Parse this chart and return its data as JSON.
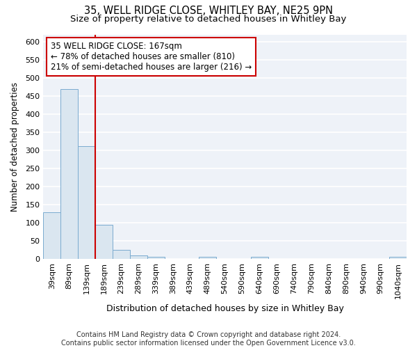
{
  "title1": "35, WELL RIDGE CLOSE, WHITLEY BAY, NE25 9PN",
  "title2": "Size of property relative to detached houses in Whitley Bay",
  "xlabel": "Distribution of detached houses by size in Whitley Bay",
  "ylabel": "Number of detached properties",
  "categories": [
    "39sqm",
    "89sqm",
    "139sqm",
    "189sqm",
    "239sqm",
    "289sqm",
    "339sqm",
    "389sqm",
    "439sqm",
    "489sqm",
    "540sqm",
    "590sqm",
    "640sqm",
    "690sqm",
    "740sqm",
    "790sqm",
    "840sqm",
    "890sqm",
    "940sqm",
    "990sqm",
    "1040sqm"
  ],
  "values": [
    128,
    470,
    311,
    95,
    25,
    10,
    5,
    0,
    0,
    5,
    0,
    0,
    5,
    0,
    0,
    0,
    0,
    0,
    0,
    0,
    5
  ],
  "bar_color": "#dae6f0",
  "bar_edge_color": "#7aabcf",
  "red_line_color": "#cc0000",
  "annotation_text": "35 WELL RIDGE CLOSE: 167sqm\n← 78% of detached houses are smaller (810)\n21% of semi-detached houses are larger (216) →",
  "annotation_box_color": "white",
  "annotation_box_edge": "#cc0000",
  "ylim": [
    0,
    620
  ],
  "yticks": [
    0,
    50,
    100,
    150,
    200,
    250,
    300,
    350,
    400,
    450,
    500,
    550,
    600
  ],
  "bg_color": "#eef2f8",
  "grid_color": "white",
  "footer": "Contains HM Land Registry data © Crown copyright and database right 2024.\nContains public sector information licensed under the Open Government Licence v3.0.",
  "title1_fontsize": 10.5,
  "title2_fontsize": 9.5,
  "xlabel_fontsize": 9,
  "ylabel_fontsize": 8.5,
  "tick_fontsize": 8,
  "annotation_fontsize": 8.5,
  "footer_fontsize": 7
}
